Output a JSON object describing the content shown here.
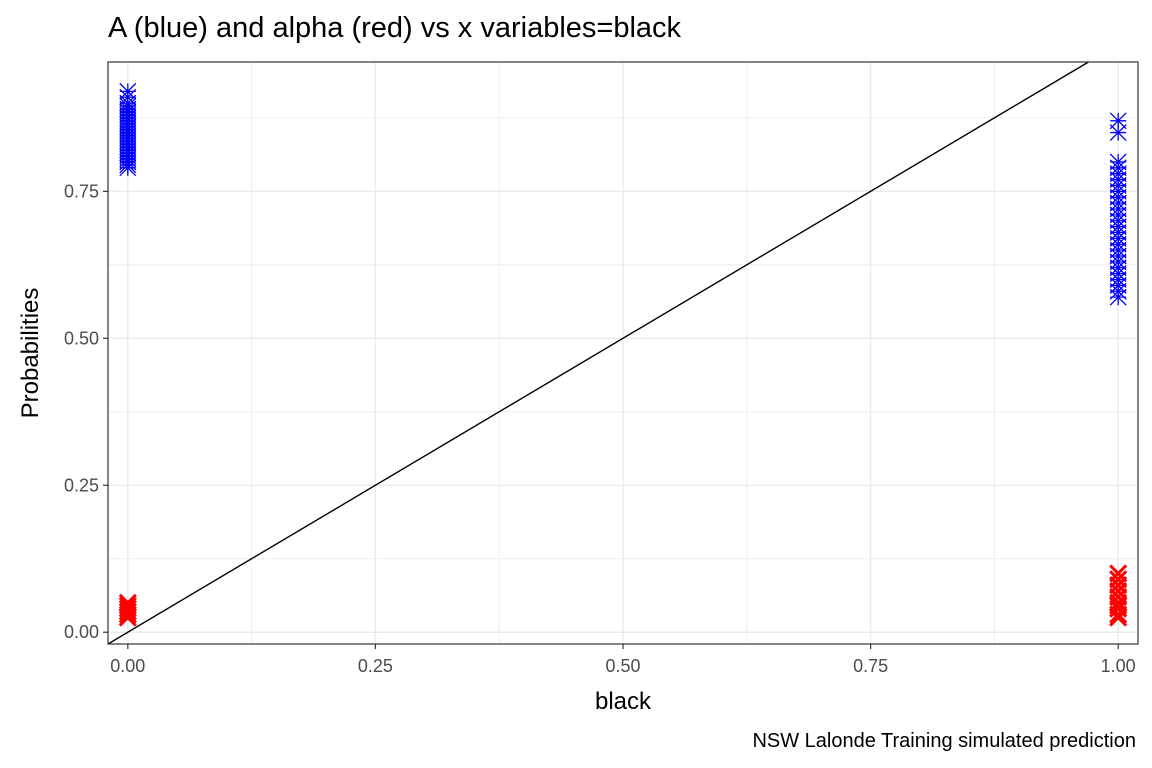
{
  "title": "A (blue) and alpha (red) vs x variables=black",
  "caption": "NSW Lalonde Training simulated prediction",
  "colors": {
    "A": "#0000ff",
    "alpha": "#ff0000",
    "reference_line": "#000000",
    "grid": "#ebebeb",
    "panel_border": "#333333"
  },
  "chart_data": {
    "type": "scatter",
    "title": "A (blue) and alpha (red) vs x variables=black",
    "xlabel": "black",
    "ylabel": "Probabilities",
    "caption": "NSW Lalonde Training simulated prediction",
    "xlim": [
      -0.02,
      1.02
    ],
    "ylim": [
      -0.02,
      0.97
    ],
    "x_ticks": [
      0.0,
      0.25,
      0.5,
      0.75,
      1.0
    ],
    "x_tick_labels": [
      "0.00",
      "0.25",
      "0.50",
      "0.75",
      "1.00"
    ],
    "y_ticks": [
      0.0,
      0.25,
      0.5,
      0.75
    ],
    "y_tick_labels": [
      "0.00",
      "0.25",
      "0.50",
      "0.75"
    ],
    "grid": true,
    "reference_line": {
      "slope": 1,
      "intercept": 0
    },
    "series": [
      {
        "key": "A",
        "marker": "asterisk",
        "color": "#0000ff",
        "points": [
          [
            0,
            0.92
          ],
          [
            0,
            0.91
          ],
          [
            0,
            0.9
          ],
          [
            0,
            0.895
          ],
          [
            0,
            0.89
          ],
          [
            0,
            0.885
          ],
          [
            0,
            0.88
          ],
          [
            0,
            0.875
          ],
          [
            0,
            0.87
          ],
          [
            0,
            0.865
          ],
          [
            0,
            0.86
          ],
          [
            0,
            0.855
          ],
          [
            0,
            0.85
          ],
          [
            0,
            0.845
          ],
          [
            0,
            0.84
          ],
          [
            0,
            0.835
          ],
          [
            0,
            0.83
          ],
          [
            0,
            0.825
          ],
          [
            0,
            0.82
          ],
          [
            0,
            0.815
          ],
          [
            0,
            0.81
          ],
          [
            0,
            0.805
          ],
          [
            0,
            0.8
          ],
          [
            0,
            0.795
          ],
          [
            0,
            0.79
          ],
          [
            1,
            0.87
          ],
          [
            1,
            0.85
          ],
          [
            1,
            0.8
          ],
          [
            1,
            0.79
          ],
          [
            1,
            0.78
          ],
          [
            1,
            0.77
          ],
          [
            1,
            0.76
          ],
          [
            1,
            0.75
          ],
          [
            1,
            0.74
          ],
          [
            1,
            0.73
          ],
          [
            1,
            0.72
          ],
          [
            1,
            0.71
          ],
          [
            1,
            0.7
          ],
          [
            1,
            0.69
          ],
          [
            1,
            0.68
          ],
          [
            1,
            0.67
          ],
          [
            1,
            0.66
          ],
          [
            1,
            0.65
          ],
          [
            1,
            0.64
          ],
          [
            1,
            0.63
          ],
          [
            1,
            0.62
          ],
          [
            1,
            0.61
          ],
          [
            1,
            0.6
          ],
          [
            1,
            0.59
          ],
          [
            1,
            0.58
          ],
          [
            1,
            0.57
          ]
        ]
      },
      {
        "key": "alpha",
        "marker": "x",
        "color": "#ff0000",
        "points": [
          [
            0,
            0.05
          ],
          [
            0,
            0.045
          ],
          [
            0,
            0.04
          ],
          [
            0,
            0.035
          ],
          [
            0,
            0.03
          ],
          [
            0,
            0.025
          ],
          [
            1,
            0.1
          ],
          [
            1,
            0.09
          ],
          [
            1,
            0.08
          ],
          [
            1,
            0.07
          ],
          [
            1,
            0.06
          ],
          [
            1,
            0.05
          ],
          [
            1,
            0.045
          ],
          [
            1,
            0.04
          ],
          [
            1,
            0.03
          ],
          [
            1,
            0.025
          ]
        ]
      }
    ]
  }
}
